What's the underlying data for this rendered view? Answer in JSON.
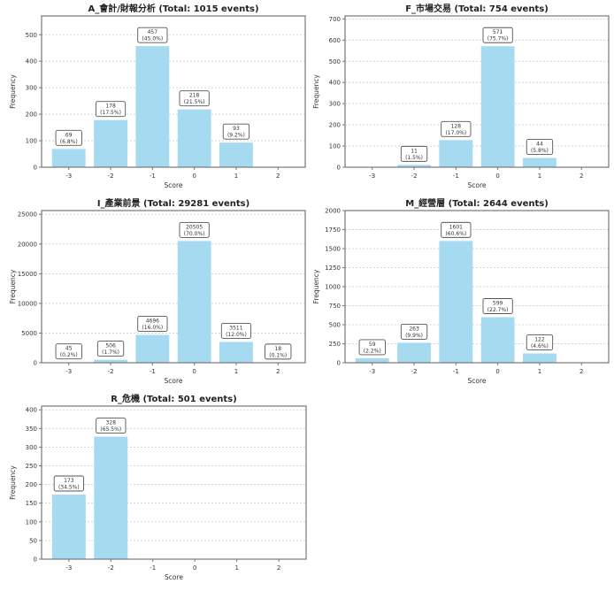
{
  "figure": {
    "bar_color": "#A6DAF0",
    "frame_color": "#777777",
    "grid_color": "#cccccc",
    "label_box_border": "#555555",
    "text_color": "#333333"
  },
  "chart_data": [
    {
      "type": "bar",
      "title": "A_會計/財報分析 (Total: 1015 events)",
      "xlabel": "Score",
      "ylabel": "Frequency",
      "categories": [
        "-3",
        "-2",
        "-1",
        "0",
        "1",
        "2"
      ],
      "x": [
        -3,
        -2,
        -1,
        0,
        1,
        2
      ],
      "values": [
        69,
        178,
        457,
        218,
        93,
        0
      ],
      "data_labels": [
        [
          "69",
          "(6.8%)"
        ],
        [
          "178",
          "(17.5%)"
        ],
        [
          "457",
          "(45.0%)"
        ],
        [
          "218",
          "(21.5%)"
        ],
        [
          "93",
          "(9.2%)"
        ],
        null
      ],
      "yticks": [
        0,
        100,
        200,
        300,
        400,
        500
      ],
      "ylim": [
        0,
        571
      ],
      "xlim": [
        -3.65,
        2.65
      ],
      "grid": true
    },
    {
      "type": "bar",
      "title": "F_市場交易 (Total: 754 events)",
      "xlabel": "Score",
      "ylabel": "Frequency",
      "categories": [
        "-3",
        "-2",
        "-1",
        "0",
        "1",
        "2"
      ],
      "x": [
        -3,
        -2,
        -1,
        0,
        1,
        2
      ],
      "values": [
        0,
        11,
        128,
        571,
        44,
        0
      ],
      "data_labels": [
        null,
        [
          "11",
          "(1.5%)"
        ],
        [
          "128",
          "(17.0%)"
        ],
        [
          "571",
          "(75.7%)"
        ],
        [
          "44",
          "(5.8%)"
        ],
        null
      ],
      "yticks": [
        0,
        100,
        200,
        300,
        400,
        500,
        600,
        700
      ],
      "ylim": [
        0,
        714
      ],
      "xlim": [
        -3.65,
        2.65
      ],
      "grid": true
    },
    {
      "type": "bar",
      "title": "I_產業前景 (Total: 29281 events)",
      "xlabel": "Score",
      "ylabel": "Frequency",
      "categories": [
        "-3",
        "-2",
        "-1",
        "0",
        "1",
        "2"
      ],
      "x": [
        -3,
        -2,
        -1,
        0,
        1,
        2
      ],
      "values": [
        45,
        506,
        4696,
        20505,
        3511,
        18
      ],
      "data_labels": [
        [
          "45",
          "(0.2%)"
        ],
        [
          "506",
          "(1.7%)"
        ],
        [
          "4696",
          "(16.0%)"
        ],
        [
          "20505",
          "(70.0%)"
        ],
        [
          "3511",
          "(12.0%)"
        ],
        [
          "18",
          "(0.1%)"
        ]
      ],
      "yticks": [
        0,
        5000,
        10000,
        15000,
        20000,
        25000
      ],
      "ylim": [
        0,
        25631
      ],
      "xlim": [
        -3.65,
        2.65
      ],
      "grid": true
    },
    {
      "type": "bar",
      "title": "M_經營層 (Total: 2644 events)",
      "xlabel": "Score",
      "ylabel": "Frequency",
      "categories": [
        "-3",
        "-2",
        "-1",
        "0",
        "1",
        "2"
      ],
      "x": [
        -3,
        -2,
        -1,
        0,
        1,
        2
      ],
      "values": [
        59,
        263,
        1601,
        599,
        122,
        0
      ],
      "data_labels": [
        [
          "59",
          "(2.2%)"
        ],
        [
          "263",
          "(9.9%)"
        ],
        [
          "1601",
          "(60.6%)"
        ],
        [
          "599",
          "(22.7%)"
        ],
        [
          "122",
          "(4.6%)"
        ],
        null
      ],
      "yticks": [
        0,
        250,
        500,
        750,
        1000,
        1250,
        1500,
        1750,
        2000
      ],
      "ylim": [
        0,
        2001
      ],
      "xlim": [
        -3.65,
        2.65
      ],
      "grid": true
    },
    {
      "type": "bar",
      "title": "R_危機 (Total: 501 events)",
      "xlabel": "Score",
      "ylabel": "Frequency",
      "categories": [
        "-3",
        "-2",
        "-1",
        "0",
        "1",
        "2"
      ],
      "x": [
        -3,
        -2,
        -1,
        0,
        1,
        2
      ],
      "values": [
        173,
        328,
        0,
        0,
        0,
        0
      ],
      "data_labels": [
        [
          "173",
          "(34.5%)"
        ],
        [
          "328",
          "(65.5%)"
        ],
        null,
        null,
        null,
        null
      ],
      "yticks": [
        0,
        50,
        100,
        150,
        200,
        250,
        300,
        350,
        400
      ],
      "ylim": [
        0,
        410
      ],
      "xlim": [
        -3.65,
        2.65
      ],
      "grid": true
    }
  ]
}
